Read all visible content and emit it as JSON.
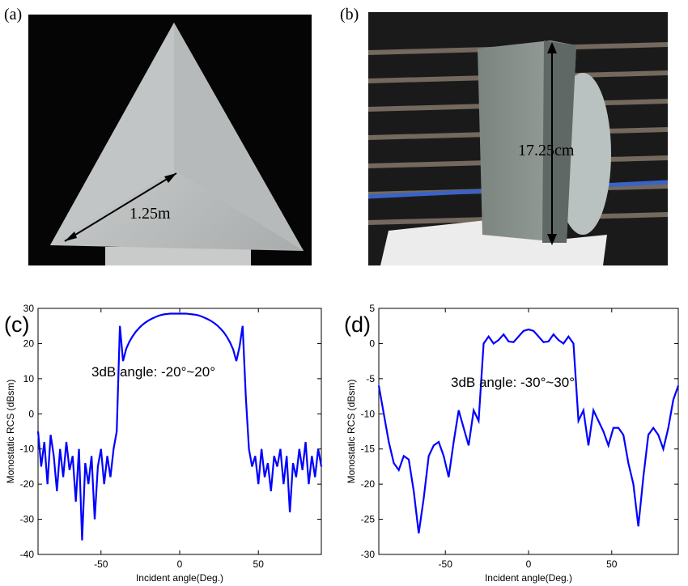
{
  "panels": [
    {
      "label": "(a)",
      "annotation": "1.25m"
    },
    {
      "label": "(b)",
      "annotation": "17.25cm"
    }
  ],
  "chart_data": [
    {
      "type": "line",
      "panel_label": "(c)",
      "xlabel": "Incident angle(Deg.)",
      "ylabel": "Monostatic RCS (dBsm)",
      "annotation": "3dB angle: -20°~20°",
      "xlim": [
        -90,
        90
      ],
      "xticks": [
        -50,
        0,
        50
      ],
      "ylim": [
        -40,
        30
      ],
      "yticks": [
        -40,
        -30,
        -20,
        -10,
        0,
        10,
        20,
        30
      ],
      "x": [
        -90,
        -88,
        -86,
        -84,
        -82,
        -80,
        -78,
        -76,
        -74,
        -72,
        -70,
        -68,
        -66,
        -64,
        -62,
        -60,
        -58,
        -56,
        -54,
        -52,
        -50,
        -48,
        -46,
        -44,
        -42,
        -40,
        -38,
        -36,
        -34,
        -32,
        -30,
        -28,
        -26,
        -24,
        -22,
        -20,
        -18,
        -16,
        -14,
        -12,
        -10,
        -8,
        -6,
        -4,
        -2,
        0,
        2,
        4,
        6,
        8,
        10,
        12,
        14,
        16,
        18,
        20,
        22,
        24,
        26,
        28,
        30,
        32,
        34,
        36,
        38,
        40,
        42,
        44,
        46,
        48,
        50,
        52,
        54,
        56,
        58,
        60,
        62,
        64,
        66,
        68,
        70,
        72,
        74,
        76,
        78,
        80,
        82,
        84,
        86,
        88,
        90
      ],
      "series": [
        {
          "name": "RCS",
          "color": "#0000ff",
          "values": [
            -5,
            -15,
            -8,
            -20,
            -6,
            -12,
            -22,
            -10,
            -18,
            -8,
            -16,
            -12,
            -25,
            -10,
            -36,
            -14,
            -20,
            -12,
            -30,
            -15,
            -10,
            -20,
            -12,
            -18,
            -10,
            -5,
            25,
            15,
            18.5,
            20.5,
            22,
            23.3,
            24.3,
            25.2,
            25.9,
            26.5,
            27,
            27.4,
            27.8,
            28.1,
            28.3,
            28.4,
            28.5,
            28.5,
            28.5,
            28.5,
            28.5,
            28.5,
            28.4,
            28.3,
            28.2,
            28,
            27.7,
            27.3,
            26.9,
            26.4,
            25.8,
            25.1,
            24.2,
            23.2,
            21.9,
            20.3,
            18.3,
            15,
            19,
            25,
            5,
            -10,
            -15,
            -12,
            -20,
            -10,
            -18,
            -14,
            -22,
            -12,
            -15,
            -10,
            -20,
            -12,
            -28,
            -14,
            -18,
            -10,
            -16,
            -8,
            -20,
            -12,
            -18,
            -10,
            -15
          ]
        }
      ]
    },
    {
      "type": "line",
      "panel_label": "(d)",
      "xlabel": "Incident angle(Deg.)",
      "ylabel": "Monostatic RCS (dBsm)",
      "annotation": "3dB angle: -30°~30°",
      "xlim": [
        -90,
        90
      ],
      "xticks": [
        -50,
        0,
        50
      ],
      "ylim": [
        -30,
        5
      ],
      "yticks": [
        -30,
        -25,
        -20,
        -15,
        -10,
        -5,
        0,
        5
      ],
      "x": [
        -90,
        -87,
        -84,
        -81,
        -78,
        -75,
        -72,
        -69,
        -66,
        -63,
        -60,
        -57,
        -54,
        -51,
        -48,
        -45,
        -42,
        -39,
        -36,
        -33,
        -30,
        -27,
        -24,
        -21,
        -18,
        -15,
        -12,
        -9,
        -6,
        -3,
        0,
        3,
        6,
        9,
        12,
        15,
        18,
        21,
        24,
        27,
        30,
        33,
        36,
        39,
        42,
        45,
        48,
        51,
        54,
        57,
        60,
        63,
        66,
        69,
        72,
        75,
        78,
        81,
        84,
        87,
        90
      ],
      "series": [
        {
          "name": "RCS",
          "color": "#0000ff",
          "values": [
            -6,
            -10,
            -14,
            -17,
            -18,
            -16,
            -16.5,
            -21,
            -27,
            -22,
            -16,
            -14.5,
            -14,
            -16,
            -19,
            -14,
            -9.5,
            -12,
            -14.5,
            -9.5,
            -11,
            0,
            1,
            0,
            0.5,
            1.3,
            0.3,
            0.2,
            1,
            1.8,
            2,
            1.8,
            1,
            0.2,
            0.3,
            1.3,
            0.5,
            0,
            1,
            0,
            -11,
            -9.5,
            -14.5,
            -9.5,
            -11,
            -12.5,
            -14.5,
            -12,
            -12,
            -13,
            -17,
            -20,
            -26,
            -19,
            -13,
            -12,
            -13,
            -15,
            -12,
            -8,
            -6
          ]
        }
      ]
    }
  ]
}
